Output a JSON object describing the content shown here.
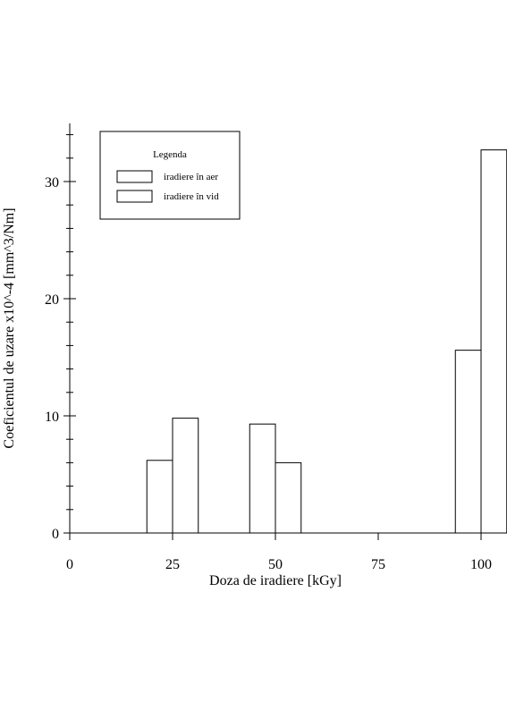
{
  "chart_data": {
    "type": "bar",
    "xlabel": "Doza de iradiere [kGy]",
    "ylabel": "Coeficientul de uzare x10^-4 [mm^3/Nm]",
    "xlim": [
      0,
      107
    ],
    "ylim": [
      0,
      35
    ],
    "x_ticks": [
      "0",
      "25",
      "50",
      "75",
      "100"
    ],
    "y_ticks": [
      "0",
      "10",
      "20",
      "30"
    ],
    "categories": [
      25,
      50,
      100
    ],
    "bar_width": 6.25,
    "series": [
      {
        "name": "iradiere în aer",
        "values": [
          6.2,
          9.3,
          15.6
        ]
      },
      {
        "name": "iradiere în vid",
        "values": [
          9.8,
          6.0,
          32.7
        ]
      }
    ],
    "legend": {
      "title": "Legenda",
      "position": "top-left"
    },
    "grid": false
  }
}
